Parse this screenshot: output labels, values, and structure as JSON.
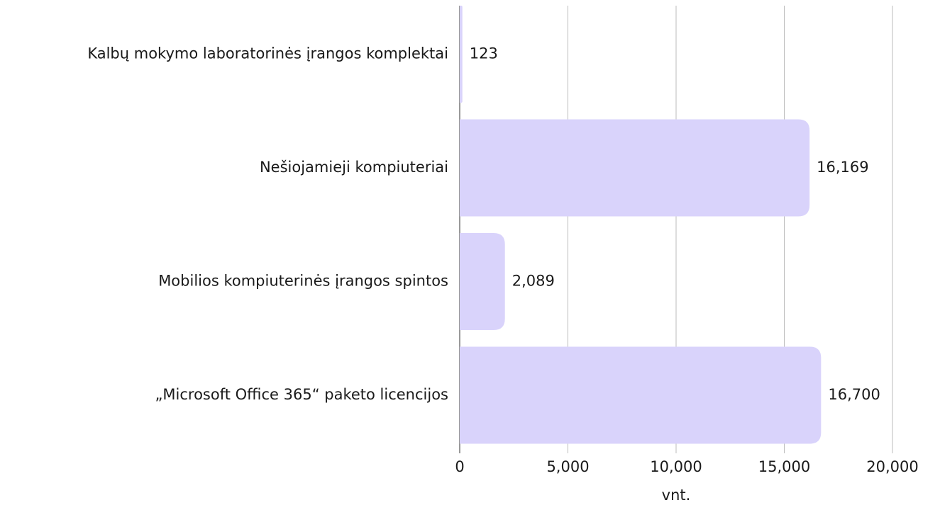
{
  "chart_data": {
    "type": "bar",
    "orientation": "horizontal",
    "categories": [
      "Kalbų mokymo laboratorinės įrangos komplektai",
      "Nešiojamieji kompiuteriai",
      "Mobilios kompiuterinės įrangos spintos",
      "„Microsoft Office 365“ paketo licencijos"
    ],
    "values": [
      123,
      16169,
      2089,
      16700
    ],
    "value_labels": [
      "123",
      "16,169",
      "2,089",
      "16,700"
    ],
    "color": "#d9d3fb",
    "xlabel": "vnt.",
    "xlim": [
      0,
      20000
    ],
    "xticks": [
      0,
      {
        "value": 5000,
        "label": "5,000"
      },
      {
        "value": 10000,
        "label": "10,000"
      },
      {
        "value": 15000,
        "label": "15,000"
      },
      {
        "value": 20000,
        "label": "20,000"
      }
    ],
    "grid": true
  }
}
